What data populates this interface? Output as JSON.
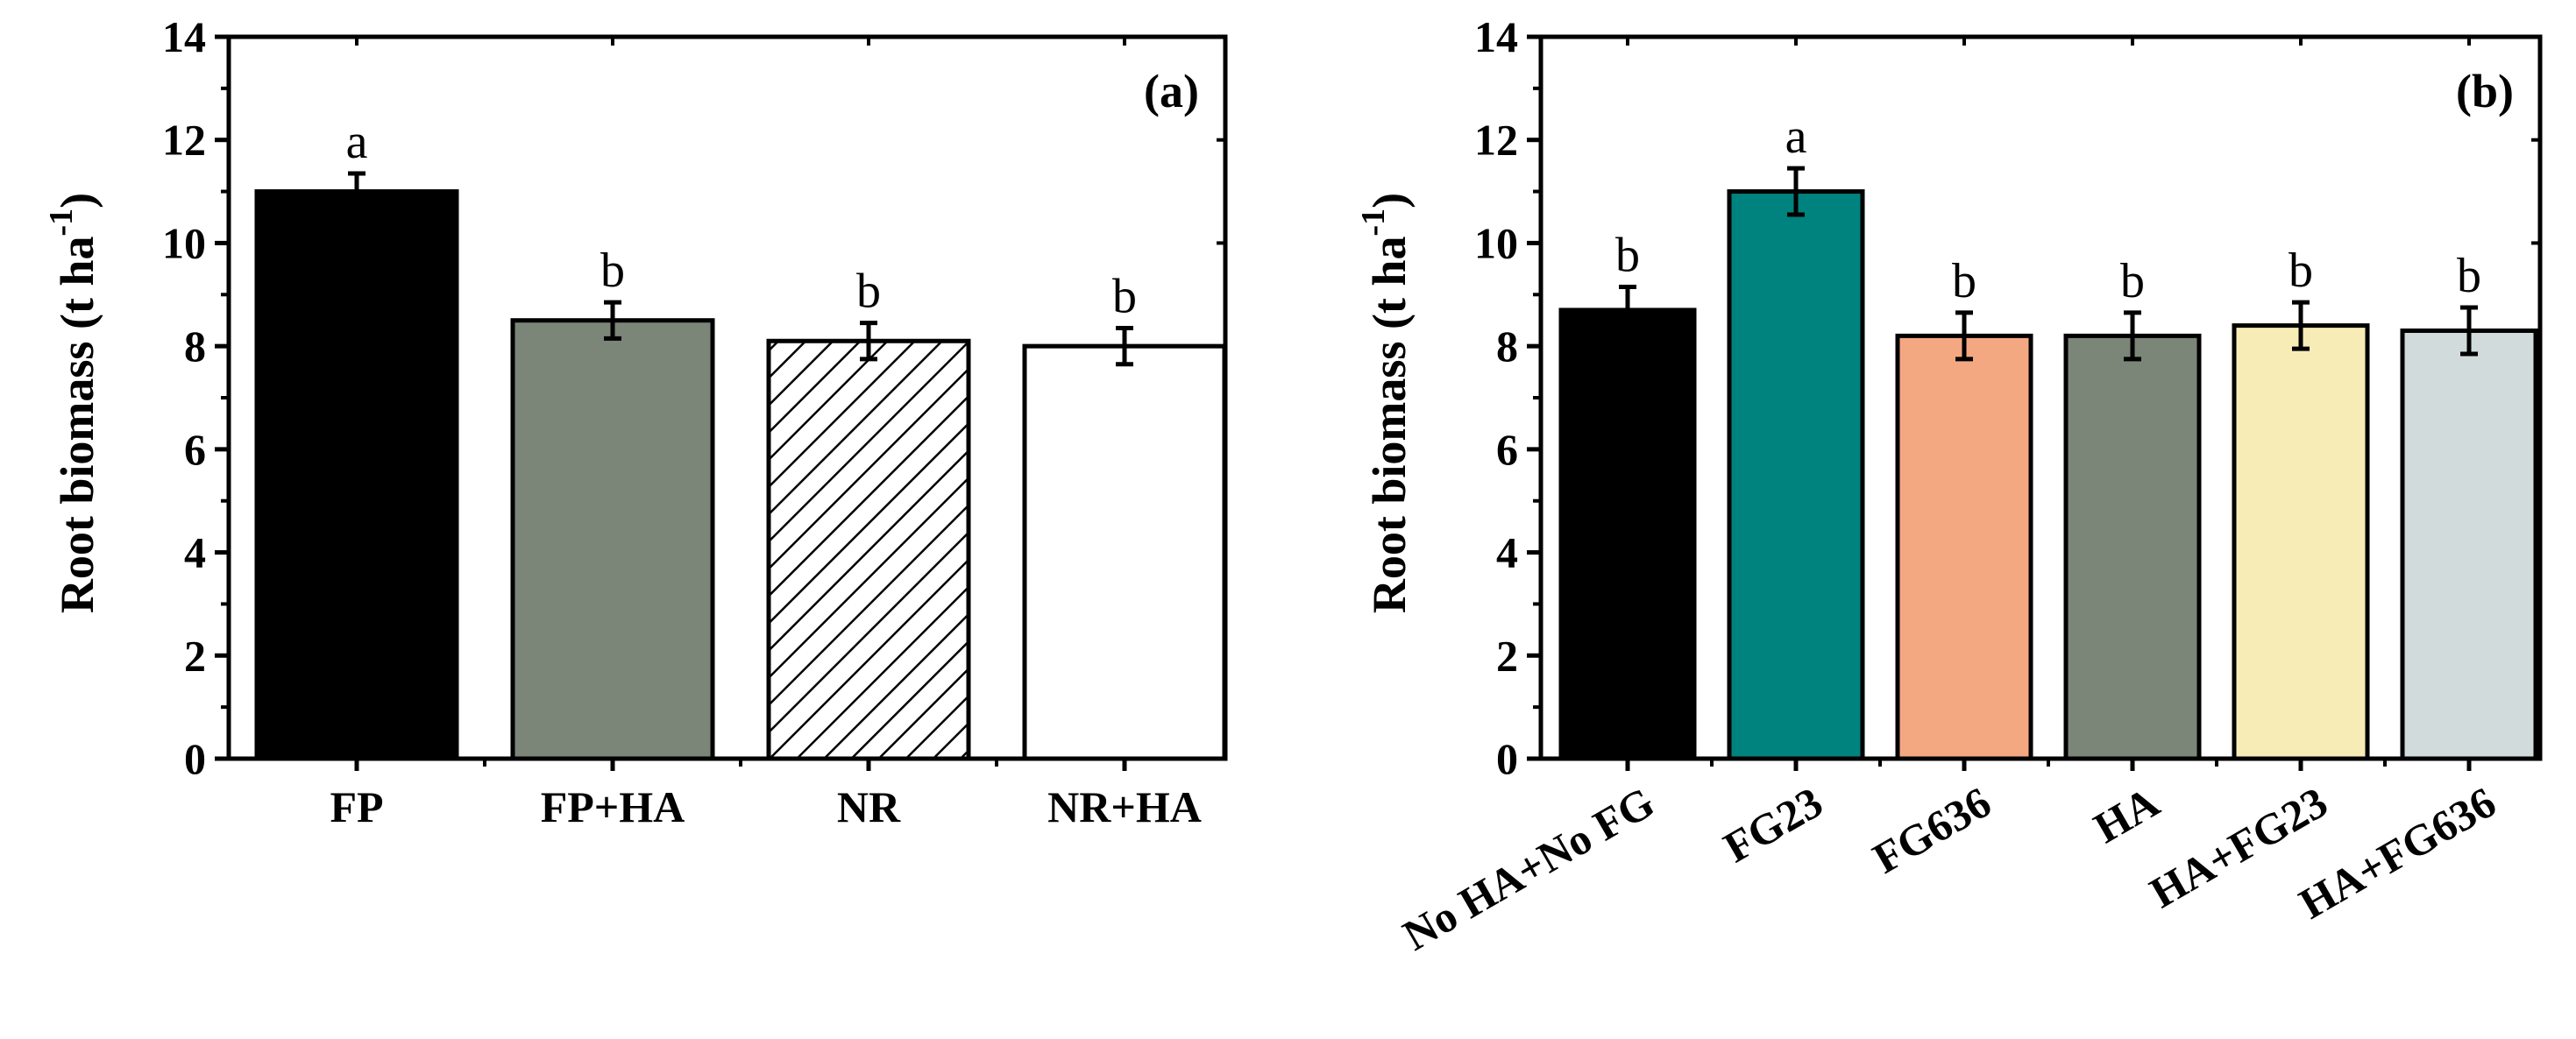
{
  "chart_data": [
    {
      "type": "bar",
      "panel_label": "(a)",
      "ylabel": {
        "main": "Root biomass (t ha",
        "sup": "-1",
        "close": ")"
      },
      "ylim": [
        0,
        14
      ],
      "yticks": [
        "0",
        "2",
        "4",
        "6",
        "8",
        "10",
        "12",
        "14"
      ],
      "categories": [
        "FP",
        "FP+HA",
        "NR",
        "NR+HA"
      ],
      "values": [
        11.0,
        8.5,
        8.1,
        8.0
      ],
      "errors": [
        0.35,
        0.35,
        0.35,
        0.35
      ],
      "letters": [
        "a",
        "b",
        "b",
        "b"
      ],
      "fills": [
        "#000000",
        "#7b8578",
        "hatch",
        "#ffffff"
      ],
      "xtick_rotation": 0
    },
    {
      "type": "bar",
      "panel_label": "(b)",
      "ylabel": {
        "main": "Root biomass (t ha",
        "sup": "-1",
        "close": ")"
      },
      "ylim": [
        0,
        14
      ],
      "yticks": [
        "0",
        "2",
        "4",
        "6",
        "8",
        "10",
        "12",
        "14"
      ],
      "categories": [
        "No HA+No FG",
        "FG23",
        "FG636",
        "HA",
        "HA+FG23",
        "HA+FG636"
      ],
      "values": [
        8.7,
        11.0,
        8.2,
        8.2,
        8.4,
        8.3
      ],
      "errors": [
        0.45,
        0.45,
        0.45,
        0.45,
        0.45,
        0.45
      ],
      "letters": [
        "b",
        "a",
        "b",
        "b",
        "b",
        "b"
      ],
      "fills": [
        "#000000",
        "#00827f",
        "#f4a882",
        "#7b8578",
        "#f8ecb6",
        "#d1dbdb"
      ],
      "xtick_rotation": -30
    }
  ]
}
